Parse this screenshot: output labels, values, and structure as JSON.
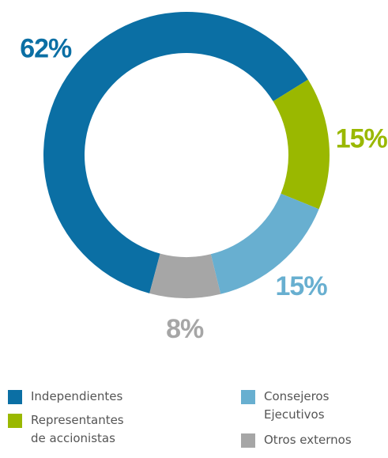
{
  "chart_data": {
    "type": "donut",
    "series": [
      {
        "name": "Independientes",
        "color": "#0b6fa4",
        "values": [
          62
        ],
        "value_labels": [
          "62%"
        ]
      },
      {
        "name": "Representantes de accionistas",
        "color": "#9ab800",
        "values": [
          15
        ],
        "value_labels": [
          "15%"
        ]
      },
      {
        "name": "Consejeros Ejecutivos",
        "color": "#68afd0",
        "values": [
          15
        ],
        "value_labels": [
          "15%"
        ]
      },
      {
        "name": "Otros externos",
        "color": "#a6a6a6",
        "values": [
          8
        ],
        "value_labels": [
          "8%"
        ]
      }
    ]
  }
}
